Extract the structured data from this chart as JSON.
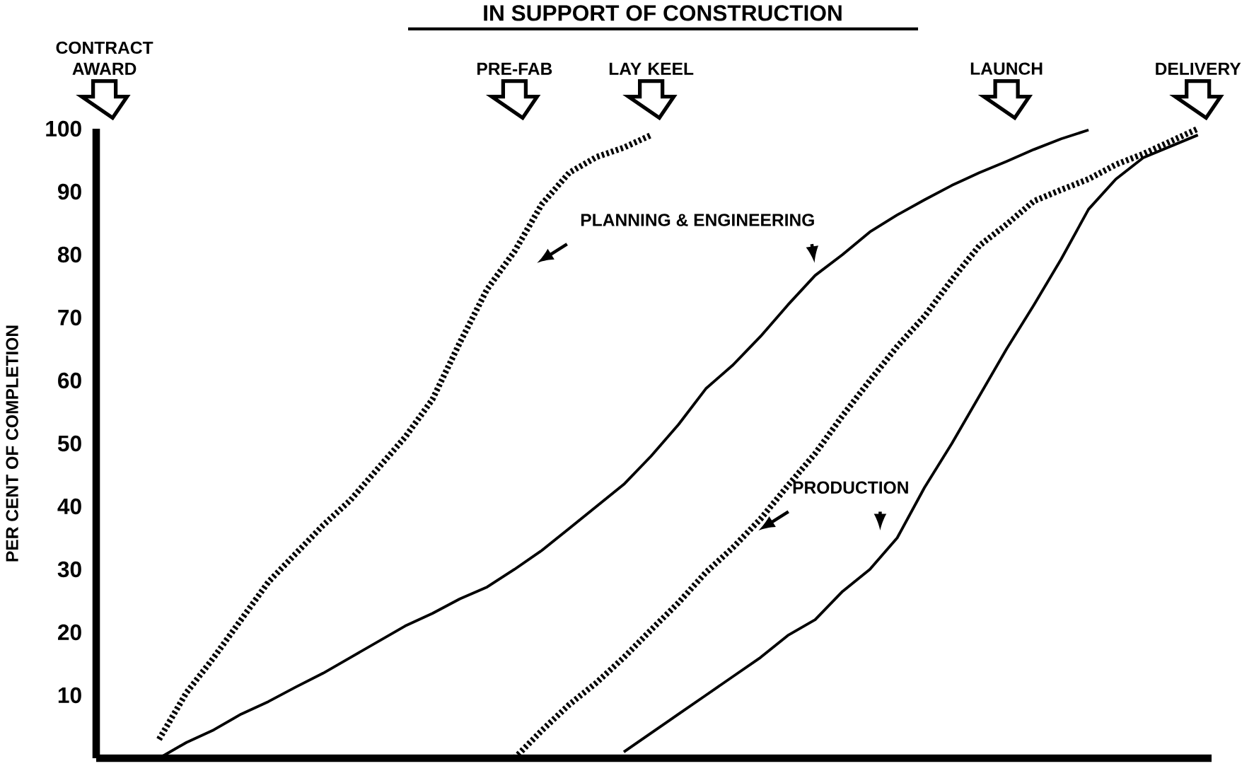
{
  "chart_data": {
    "type": "line",
    "title": "IN SUPPORT OF CONSTRUCTION",
    "ylabel": "PER CENT OF COMPLETION",
    "categories": [
      "CONTRACT AWARD",
      null,
      null,
      null,
      null,
      null,
      null,
      null,
      null,
      null,
      null,
      null,
      null,
      null,
      null,
      "PRE-FAB",
      null,
      null,
      null,
      null,
      "LAY KEEL",
      null,
      null,
      null,
      null,
      null,
      null,
      null,
      null,
      null,
      null,
      null,
      null,
      "LAUNCH",
      null,
      null,
      null,
      null,
      null,
      null,
      "DELIVERY"
    ],
    "series": [
      {
        "color": "#000000",
        "line_style": "dashed",
        "values": [
          null,
          null,
          3,
          10.4,
          16,
          22,
          28,
          32.5,
          37,
          41,
          46,
          51,
          57,
          66,
          74.5,
          80.5,
          88,
          93,
          95.5,
          97,
          99,
          null,
          null,
          null,
          null,
          null,
          null,
          null,
          null,
          null,
          null,
          null,
          null,
          null,
          null,
          null,
          null,
          null,
          null,
          null,
          null
        ]
      },
      {
        "color": "#000000",
        "line_style": "solid",
        "values": [
          null,
          null,
          0,
          2.5,
          4.5,
          7,
          9,
          11.3,
          13.5,
          16,
          18.5,
          21,
          23,
          25.3,
          27.2,
          30,
          33,
          36.5,
          40,
          43.5,
          48,
          53,
          58.7,
          62.5,
          67,
          72,
          76.7,
          80,
          83.6,
          86.3,
          88.7,
          91,
          93,
          94.8,
          96.7,
          98.4,
          99.8,
          null,
          null,
          null,
          null
        ]
      },
      {
        "color": "#000000",
        "line_style": "dashed",
        "values": [
          null,
          null,
          null,
          null,
          null,
          null,
          null,
          null,
          null,
          null,
          null,
          null,
          null,
          null,
          null,
          0,
          4.4,
          8.5,
          12,
          16,
          20.4,
          24.7,
          29.5,
          33.5,
          38,
          43.3,
          48.4,
          54.4,
          60,
          65.4,
          70.2,
          76,
          81.4,
          84.8,
          88.5,
          90.3,
          92,
          94.3,
          96,
          98,
          100
        ]
      },
      {
        "color": "#000000",
        "line_style": "solid",
        "values": [
          null,
          null,
          null,
          null,
          null,
          null,
          null,
          null,
          null,
          null,
          null,
          null,
          null,
          null,
          null,
          null,
          null,
          null,
          null,
          1,
          4,
          7,
          10,
          13,
          16,
          19.5,
          22,
          26.5,
          30,
          35,
          43,
          50,
          57.5,
          65,
          72,
          79.3,
          87.2,
          92,
          95.4,
          97.2,
          99
        ]
      }
    ],
    "annotations": [
      "PLANNING & ENGINEERING",
      "PRODUCTION"
    ],
    "ylim": [
      0,
      100
    ],
    "yticks": [
      10,
      20,
      30,
      40,
      50,
      60,
      70,
      80,
      90,
      100
    ],
    "grid": false,
    "marker": "none"
  }
}
